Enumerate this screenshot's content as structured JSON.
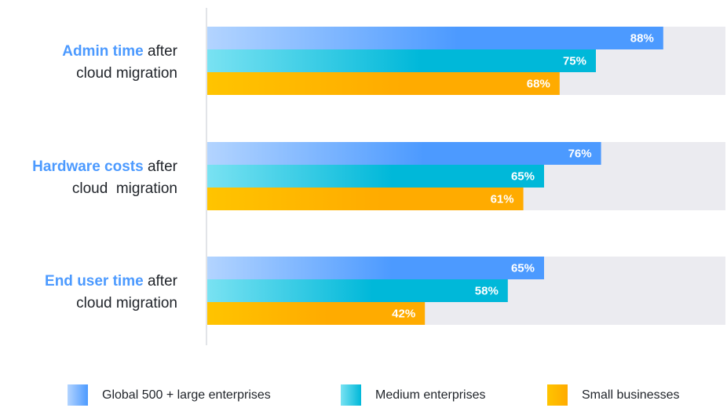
{
  "chart_data": {
    "type": "bar",
    "orientation": "horizontal",
    "categories": [
      {
        "highlight": "Admin time",
        "rest": "after",
        "line2": "cloud migration"
      },
      {
        "highlight": "Hardware costs",
        "rest": "after",
        "line2": "cloud  migration"
      },
      {
        "highlight": "End user time",
        "rest": "after",
        "line2": "cloud migration"
      }
    ],
    "series": [
      {
        "name": "Global 500 + large enterprises",
        "values": [
          88,
          76,
          65
        ],
        "labels": [
          "88%",
          "76%",
          "65%"
        ]
      },
      {
        "name": "Medium enterprises",
        "values": [
          75,
          65,
          58
        ],
        "labels": [
          "75%",
          "65%",
          "58%"
        ]
      },
      {
        "name": "Small businesses",
        "values": [
          68,
          61,
          42
        ],
        "labels": [
          "68%",
          "61%",
          "42%"
        ]
      }
    ],
    "xlim": [
      0,
      100
    ],
    "grid": false,
    "legend_position": "bottom"
  },
  "colors": {
    "background_track": "#ebebf0",
    "axis": "#d9dbe0",
    "highlight_text": "#4c9aff",
    "series_gradients": [
      [
        "#b3d4ff",
        "#4c9aff"
      ],
      [
        "#79e2f2",
        "#00b8d9"
      ],
      [
        "#ffc400",
        "#ffab00"
      ]
    ]
  }
}
